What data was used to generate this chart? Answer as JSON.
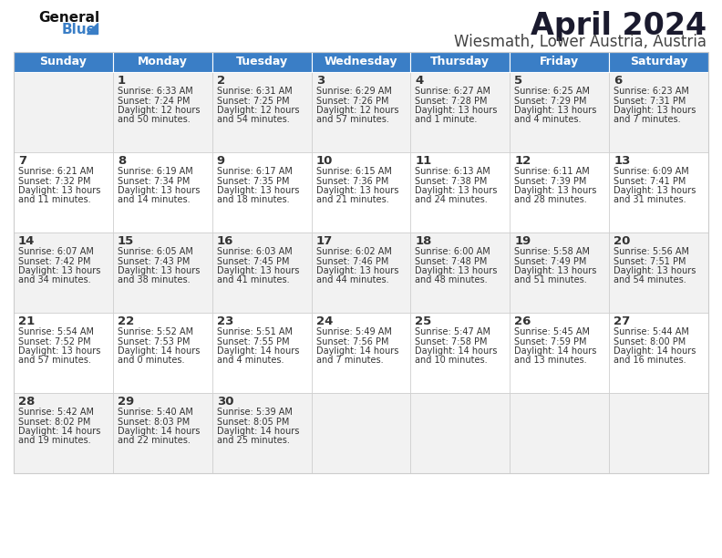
{
  "title": "April 2024",
  "subtitle": "Wiesmath, Lower Austria, Austria",
  "header_color": "#3A7EC6",
  "header_text_color": "#FFFFFF",
  "border_color": "#CCCCCC",
  "cell_bg_even": "#F2F2F2",
  "cell_bg_odd": "#FFFFFF",
  "text_color": "#333333",
  "days_of_week": [
    "Sunday",
    "Monday",
    "Tuesday",
    "Wednesday",
    "Thursday",
    "Friday",
    "Saturday"
  ],
  "calendar": [
    [
      {
        "day": "",
        "sunrise": "",
        "sunset": "",
        "daylight": ""
      },
      {
        "day": "1",
        "sunrise": "6:33 AM",
        "sunset": "7:24 PM",
        "daylight": "12 hours\nand 50 minutes."
      },
      {
        "day": "2",
        "sunrise": "6:31 AM",
        "sunset": "7:25 PM",
        "daylight": "12 hours\nand 54 minutes."
      },
      {
        "day": "3",
        "sunrise": "6:29 AM",
        "sunset": "7:26 PM",
        "daylight": "12 hours\nand 57 minutes."
      },
      {
        "day": "4",
        "sunrise": "6:27 AM",
        "sunset": "7:28 PM",
        "daylight": "13 hours\nand 1 minute."
      },
      {
        "day": "5",
        "sunrise": "6:25 AM",
        "sunset": "7:29 PM",
        "daylight": "13 hours\nand 4 minutes."
      },
      {
        "day": "6",
        "sunrise": "6:23 AM",
        "sunset": "7:31 PM",
        "daylight": "13 hours\nand 7 minutes."
      }
    ],
    [
      {
        "day": "7",
        "sunrise": "6:21 AM",
        "sunset": "7:32 PM",
        "daylight": "13 hours\nand 11 minutes."
      },
      {
        "day": "8",
        "sunrise": "6:19 AM",
        "sunset": "7:34 PM",
        "daylight": "13 hours\nand 14 minutes."
      },
      {
        "day": "9",
        "sunrise": "6:17 AM",
        "sunset": "7:35 PM",
        "daylight": "13 hours\nand 18 minutes."
      },
      {
        "day": "10",
        "sunrise": "6:15 AM",
        "sunset": "7:36 PM",
        "daylight": "13 hours\nand 21 minutes."
      },
      {
        "day": "11",
        "sunrise": "6:13 AM",
        "sunset": "7:38 PM",
        "daylight": "13 hours\nand 24 minutes."
      },
      {
        "day": "12",
        "sunrise": "6:11 AM",
        "sunset": "7:39 PM",
        "daylight": "13 hours\nand 28 minutes."
      },
      {
        "day": "13",
        "sunrise": "6:09 AM",
        "sunset": "7:41 PM",
        "daylight": "13 hours\nand 31 minutes."
      }
    ],
    [
      {
        "day": "14",
        "sunrise": "6:07 AM",
        "sunset": "7:42 PM",
        "daylight": "13 hours\nand 34 minutes."
      },
      {
        "day": "15",
        "sunrise": "6:05 AM",
        "sunset": "7:43 PM",
        "daylight": "13 hours\nand 38 minutes."
      },
      {
        "day": "16",
        "sunrise": "6:03 AM",
        "sunset": "7:45 PM",
        "daylight": "13 hours\nand 41 minutes."
      },
      {
        "day": "17",
        "sunrise": "6:02 AM",
        "sunset": "7:46 PM",
        "daylight": "13 hours\nand 44 minutes."
      },
      {
        "day": "18",
        "sunrise": "6:00 AM",
        "sunset": "7:48 PM",
        "daylight": "13 hours\nand 48 minutes."
      },
      {
        "day": "19",
        "sunrise": "5:58 AM",
        "sunset": "7:49 PM",
        "daylight": "13 hours\nand 51 minutes."
      },
      {
        "day": "20",
        "sunrise": "5:56 AM",
        "sunset": "7:51 PM",
        "daylight": "13 hours\nand 54 minutes."
      }
    ],
    [
      {
        "day": "21",
        "sunrise": "5:54 AM",
        "sunset": "7:52 PM",
        "daylight": "13 hours\nand 57 minutes."
      },
      {
        "day": "22",
        "sunrise": "5:52 AM",
        "sunset": "7:53 PM",
        "daylight": "14 hours\nand 0 minutes."
      },
      {
        "day": "23",
        "sunrise": "5:51 AM",
        "sunset": "7:55 PM",
        "daylight": "14 hours\nand 4 minutes."
      },
      {
        "day": "24",
        "sunrise": "5:49 AM",
        "sunset": "7:56 PM",
        "daylight": "14 hours\nand 7 minutes."
      },
      {
        "day": "25",
        "sunrise": "5:47 AM",
        "sunset": "7:58 PM",
        "daylight": "14 hours\nand 10 minutes."
      },
      {
        "day": "26",
        "sunrise": "5:45 AM",
        "sunset": "7:59 PM",
        "daylight": "14 hours\nand 13 minutes."
      },
      {
        "day": "27",
        "sunrise": "5:44 AM",
        "sunset": "8:00 PM",
        "daylight": "14 hours\nand 16 minutes."
      }
    ],
    [
      {
        "day": "28",
        "sunrise": "5:42 AM",
        "sunset": "8:02 PM",
        "daylight": "14 hours\nand 19 minutes."
      },
      {
        "day": "29",
        "sunrise": "5:40 AM",
        "sunset": "8:03 PM",
        "daylight": "14 hours\nand 22 minutes."
      },
      {
        "day": "30",
        "sunrise": "5:39 AM",
        "sunset": "8:05 PM",
        "daylight": "14 hours\nand 25 minutes."
      },
      {
        "day": "",
        "sunrise": "",
        "sunset": "",
        "daylight": ""
      },
      {
        "day": "",
        "sunrise": "",
        "sunset": "",
        "daylight": ""
      },
      {
        "day": "",
        "sunrise": "",
        "sunset": "",
        "daylight": ""
      },
      {
        "day": "",
        "sunrise": "",
        "sunset": "",
        "daylight": ""
      }
    ]
  ]
}
